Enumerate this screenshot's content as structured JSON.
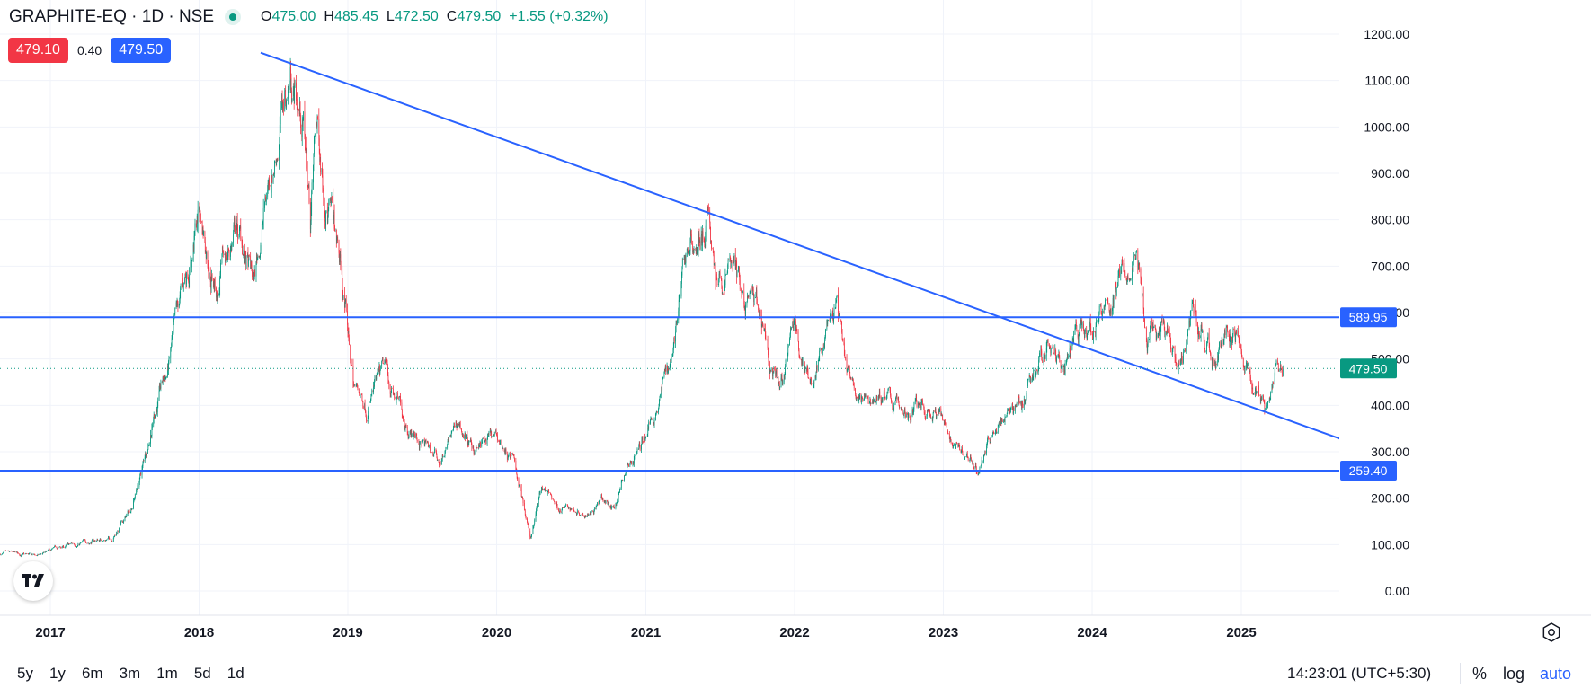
{
  "legend": {
    "symbol": "GRAPHITE-EQ · 1D · NSE",
    "open_label": "O",
    "open_value": "475.00",
    "high_label": "H",
    "high_value": "485.45",
    "low_label": "L",
    "low_value": "472.50",
    "close_label": "C",
    "close_value": "479.50",
    "change": "+1.55 (+0.32%)"
  },
  "quote": {
    "sell": "479.10",
    "spread": "0.40",
    "buy": "479.50"
  },
  "bottom_bar": {
    "ranges": [
      "5y",
      "1y",
      "6m",
      "3m",
      "1m",
      "5d",
      "1d"
    ],
    "clock": "14:23:01 (UTC+5:30)",
    "percent": "%",
    "log": "log",
    "auto": "auto"
  },
  "colors": {
    "up": "#089981",
    "down": "#f23645",
    "line": "#2962ff",
    "grid": "#f0f3fa"
  },
  "icons": {
    "logo": "tradingview-logo-icon",
    "settings": "settings-icon",
    "status": "market-open-dot-icon"
  },
  "chart_data": {
    "type": "candlestick",
    "y_axis": {
      "ticks": [
        0,
        100,
        200,
        300,
        400,
        500,
        600,
        700,
        800,
        900,
        1000,
        1100,
        1200
      ],
      "tick_labels": [
        "0.00",
        "100.00",
        "200.00",
        "300.00",
        "400.00",
        "500.00",
        "600.00",
        "700.00",
        "800.00",
        "900.00",
        "1000.00",
        "1100.00",
        "1200.00"
      ],
      "range": [
        -20,
        1230
      ]
    },
    "x_axis": {
      "ticks": [
        "2017",
        "2018",
        "2019",
        "2020",
        "2021",
        "2022",
        "2023",
        "2024",
        "2025"
      ],
      "range": [
        "2016-09-01",
        "2025-12-31"
      ]
    },
    "grid": true,
    "horizontal_lines": [
      {
        "value": 589.95,
        "label": "589.95"
      },
      {
        "value": 259.4,
        "label": "259.40"
      }
    ],
    "trend_line": {
      "points": [
        {
          "date": "2018-06-01",
          "value": 1160
        },
        {
          "date": "2025-12-31",
          "value": 290
        }
      ]
    },
    "last_price": {
      "value": 479.5,
      "label": "479.50"
    },
    "price_path": [
      [
        "2016-09-01",
        80
      ],
      [
        "2016-12-01",
        75
      ],
      [
        "2017-03-01",
        100
      ],
      [
        "2017-06-01",
        115
      ],
      [
        "2017-07-15",
        170
      ],
      [
        "2017-08-15",
        265
      ],
      [
        "2017-09-15",
        400
      ],
      [
        "2017-10-15",
        470
      ],
      [
        "2017-11-15",
        600
      ],
      [
        "2018-01-01",
        820
      ],
      [
        "2018-02-15",
        650
      ],
      [
        "2018-04-01",
        780
      ],
      [
        "2018-05-15",
        650
      ],
      [
        "2018-06-15",
        850
      ],
      [
        "2018-07-15",
        1000
      ],
      [
        "2018-08-15",
        1120
      ],
      [
        "2018-09-15",
        1000
      ],
      [
        "2018-10-01",
        800
      ],
      [
        "2018-10-15",
        1000
      ],
      [
        "2018-11-15",
        850
      ],
      [
        "2018-12-15",
        680
      ],
      [
        "2019-01-15",
        440
      ],
      [
        "2019-02-15",
        410
      ],
      [
        "2019-04-01",
        460
      ],
      [
        "2019-05-15",
        380
      ],
      [
        "2019-07-01",
        320
      ],
      [
        "2019-08-15",
        280
      ],
      [
        "2019-09-30",
        360
      ],
      [
        "2019-11-01",
        300
      ],
      [
        "2019-12-15",
        320
      ],
      [
        "2020-01-15",
        310
      ],
      [
        "2020-02-15",
        270
      ],
      [
        "2020-03-25",
        120
      ],
      [
        "2020-04-20",
        230
      ],
      [
        "2020-06-01",
        180
      ],
      [
        "2020-08-01",
        175
      ],
      [
        "2020-09-15",
        195
      ],
      [
        "2020-10-15",
        180
      ],
      [
        "2020-11-15",
        265
      ],
      [
        "2020-12-31",
        330
      ],
      [
        "2021-02-01",
        420
      ],
      [
        "2021-03-01",
        500
      ],
      [
        "2021-04-15",
        740
      ],
      [
        "2021-06-01",
        790
      ],
      [
        "2021-07-01",
        640
      ],
      [
        "2021-08-01",
        720
      ],
      [
        "2021-09-01",
        620
      ],
      [
        "2021-10-01",
        600
      ],
      [
        "2021-11-01",
        470
      ],
      [
        "2021-11-25",
        420
      ],
      [
        "2022-01-01",
        560
      ],
      [
        "2022-02-15",
        450
      ],
      [
        "2022-04-01",
        560
      ],
      [
        "2022-04-15",
        590
      ],
      [
        "2022-05-15",
        450
      ],
      [
        "2022-06-15",
        410
      ],
      [
        "2022-08-01",
        420
      ],
      [
        "2022-10-01",
        390
      ],
      [
        "2022-11-15",
        410
      ],
      [
        "2023-01-01",
        360
      ],
      [
        "2023-03-01",
        300
      ],
      [
        "2023-03-28",
        262
      ],
      [
        "2023-05-01",
        330
      ],
      [
        "2023-06-15",
        400
      ],
      [
        "2023-08-01",
        440
      ],
      [
        "2023-09-15",
        540
      ],
      [
        "2023-10-15",
        500
      ],
      [
        "2023-12-01",
        540
      ],
      [
        "2024-01-15",
        590
      ],
      [
        "2024-03-01",
        640
      ],
      [
        "2024-04-20",
        700
      ],
      [
        "2024-05-15",
        560
      ],
      [
        "2024-07-01",
        560
      ],
      [
        "2024-08-01",
        490
      ],
      [
        "2024-09-01",
        590
      ],
      [
        "2024-10-01",
        560
      ],
      [
        "2024-11-01",
        480
      ],
      [
        "2024-12-01",
        570
      ],
      [
        "2025-01-15",
        500
      ],
      [
        "2025-02-15",
        400
      ],
      [
        "2025-03-01",
        380
      ],
      [
        "2025-04-01",
        480
      ],
      [
        "2025-04-15",
        479.5
      ]
    ]
  }
}
